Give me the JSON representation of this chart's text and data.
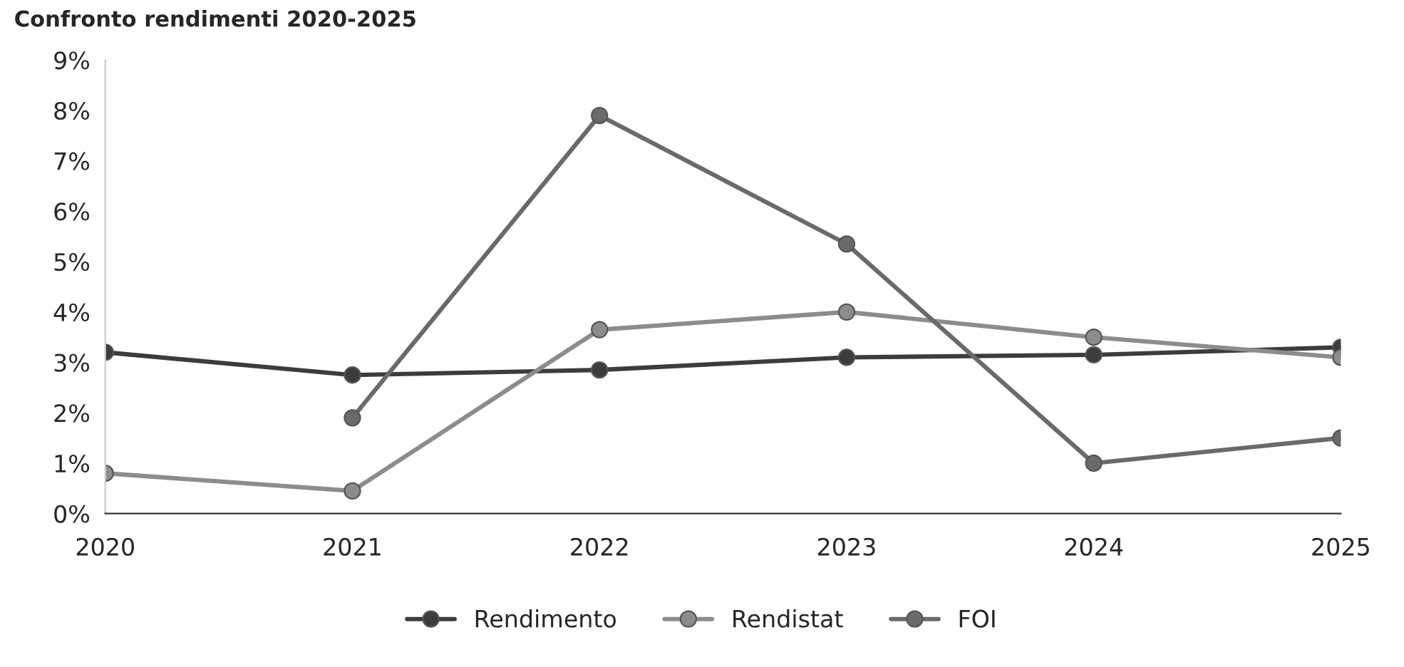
{
  "chart_data": {
    "type": "line",
    "title": "Confronto rendimenti 2020-2025",
    "categories": [
      "2020",
      "2021",
      "2022",
      "2023",
      "2024",
      "2025"
    ],
    "series": [
      {
        "name": "Rendimento",
        "color": "#3c3c3c",
        "values": [
          3.2,
          2.75,
          2.85,
          3.1,
          3.15,
          3.3
        ]
      },
      {
        "name": "Rendistat",
        "color": "#8c8c8c",
        "values": [
          0.8,
          0.45,
          3.65,
          4.0,
          3.5,
          3.1
        ]
      },
      {
        "name": "FOI",
        "color": "#6a6a6a",
        "values": [
          null,
          1.9,
          7.9,
          5.35,
          1.0,
          1.5
        ]
      }
    ],
    "ylim": [
      0,
      9
    ],
    "yticks": [
      {
        "value": 0,
        "label": "0%"
      },
      {
        "value": 1,
        "label": "1%"
      },
      {
        "value": 2,
        "label": "2%"
      },
      {
        "value": 3,
        "label": "3%"
      },
      {
        "value": 4,
        "label": "4%"
      },
      {
        "value": 5,
        "label": "5%"
      },
      {
        "value": 6,
        "label": "6%"
      },
      {
        "value": 7,
        "label": "7%"
      },
      {
        "value": 8,
        "label": "8%"
      },
      {
        "value": 9,
        "label": "9%"
      }
    ],
    "grid": false,
    "legend": "bottom",
    "marker": "circle",
    "line_style": "solid"
  }
}
